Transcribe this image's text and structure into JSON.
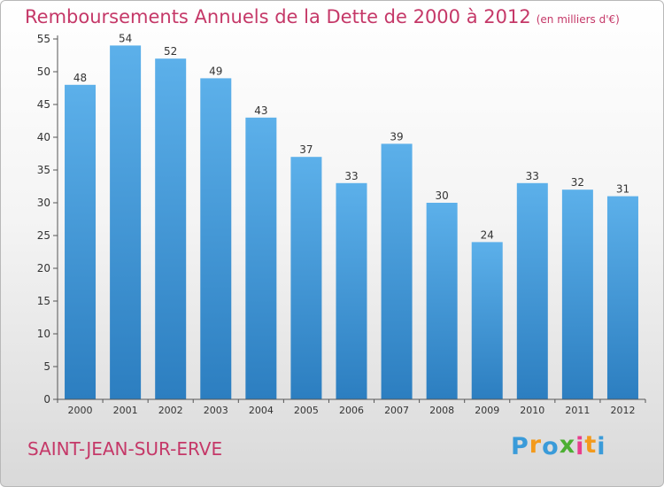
{
  "chart_data": {
    "type": "bar",
    "title": "Remboursements Annuels de la Dette de 2000 à 2012",
    "unit_label": "(en milliers d'€)",
    "categories": [
      "2000",
      "2001",
      "2002",
      "2003",
      "2004",
      "2005",
      "2006",
      "2007",
      "2008",
      "2009",
      "2010",
      "2011",
      "2012"
    ],
    "values": [
      48,
      54,
      52,
      49,
      43,
      37,
      33,
      39,
      30,
      24,
      33,
      32,
      31
    ],
    "ylim": [
      0,
      55
    ],
    "yticks": [
      0,
      5,
      10,
      15,
      20,
      25,
      30,
      35,
      40,
      45,
      50,
      55
    ],
    "xlabel": "",
    "ylabel": "",
    "grid": false
  },
  "commune": "SAINT-JEAN-SUR-ERVE",
  "logo": {
    "letters": [
      "P",
      "r",
      "o",
      "x",
      "i",
      "t",
      "i"
    ],
    "colors": [
      "#3a9bd9",
      "#f39a1c",
      "#3a9bd9",
      "#4caf32",
      "#e83e8c",
      "#f39a1c",
      "#3a9bd9"
    ]
  },
  "colors": {
    "bar_top": "#5cb0ea",
    "bar_bottom": "#2c7ec0",
    "title": "#c53868",
    "axis": "#555555"
  }
}
